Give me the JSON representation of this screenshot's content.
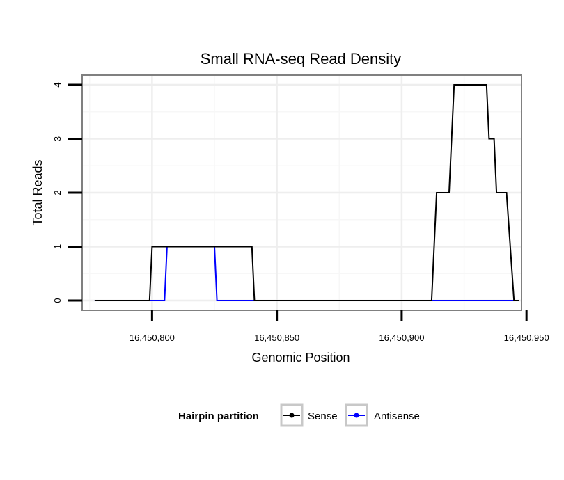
{
  "chart_data": {
    "type": "line",
    "title": "Small RNA-seq Read Density",
    "xlabel": "Genomic Position",
    "ylabel": "Total Reads",
    "xlim": [
      16450772,
      16450948
    ],
    "ylim": [
      -0.18,
      4.18
    ],
    "x_ticks": [
      16450800,
      16450850,
      16450900,
      16450950
    ],
    "x_tick_labels": [
      "16,450,800",
      "16,450,850",
      "16,450,900",
      "16,450,950"
    ],
    "y_ticks": [
      0,
      1,
      2,
      3,
      4
    ],
    "y_tick_labels": [
      "0",
      "1",
      "2",
      "3",
      "4"
    ],
    "grid": true,
    "legend": {
      "title": "Hairpin partition",
      "position": "bottom",
      "items": [
        "Sense",
        "Antisense"
      ]
    },
    "series": [
      {
        "name": "Antisense",
        "color": "#0000ff",
        "x": [
          16450777,
          16450805,
          16450806,
          16450825,
          16450826,
          16450947
        ],
        "y": [
          0,
          0,
          1,
          1,
          0,
          0
        ]
      },
      {
        "name": "Sense",
        "color": "#000000",
        "x": [
          16450777,
          16450799,
          16450800,
          16450840,
          16450841,
          16450912,
          16450914,
          16450919,
          16450921,
          16450934,
          16450935,
          16450937,
          16450938,
          16450942,
          16450945,
          16450947
        ],
        "y": [
          0,
          0,
          1,
          1,
          0,
          0,
          2,
          2,
          4,
          4,
          3,
          3,
          2,
          2,
          0,
          0
        ]
      }
    ]
  }
}
